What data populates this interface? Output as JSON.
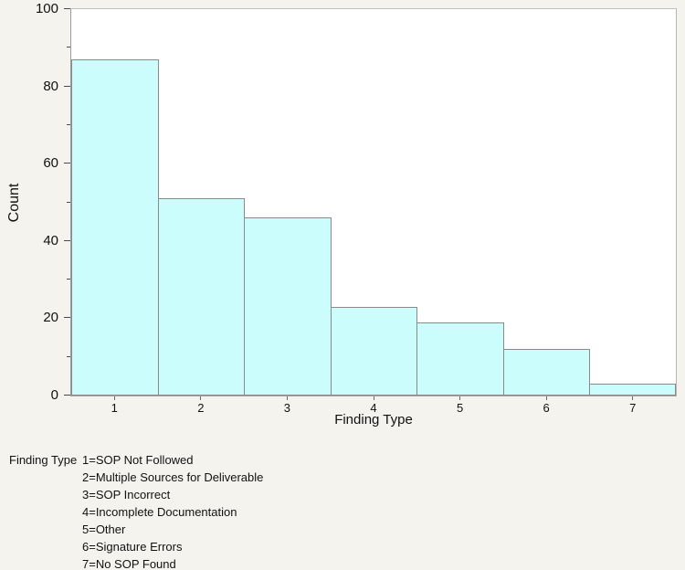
{
  "page": {
    "background_color": "#f4f3ee"
  },
  "chart_data": {
    "type": "bar",
    "title": "",
    "xlabel": "Finding Type",
    "ylabel": "Count",
    "categories": [
      "1",
      "2",
      "3",
      "4",
      "5",
      "6",
      "7"
    ],
    "values": [
      87,
      51,
      46,
      23,
      19,
      12,
      3
    ],
    "ylim": [
      0,
      100
    ],
    "yticks_major": [
      0,
      20,
      40,
      60,
      80,
      100
    ],
    "yticks_minor": [
      10,
      30,
      50,
      70,
      90
    ],
    "grid": false,
    "legend_position": "below",
    "bar_fill": "#ccfdfd",
    "bar_border": "#8a8a8a",
    "plot_background": "#ffffff"
  },
  "legend": {
    "label": "Finding Type",
    "items": [
      "1=SOP Not Followed",
      "2=Multiple Sources for Deliverable",
      "3=SOP Incorrect",
      "4=Incomplete Documentation",
      "5=Other",
      "6=Signature Errors",
      "7=No SOP Found"
    ]
  }
}
